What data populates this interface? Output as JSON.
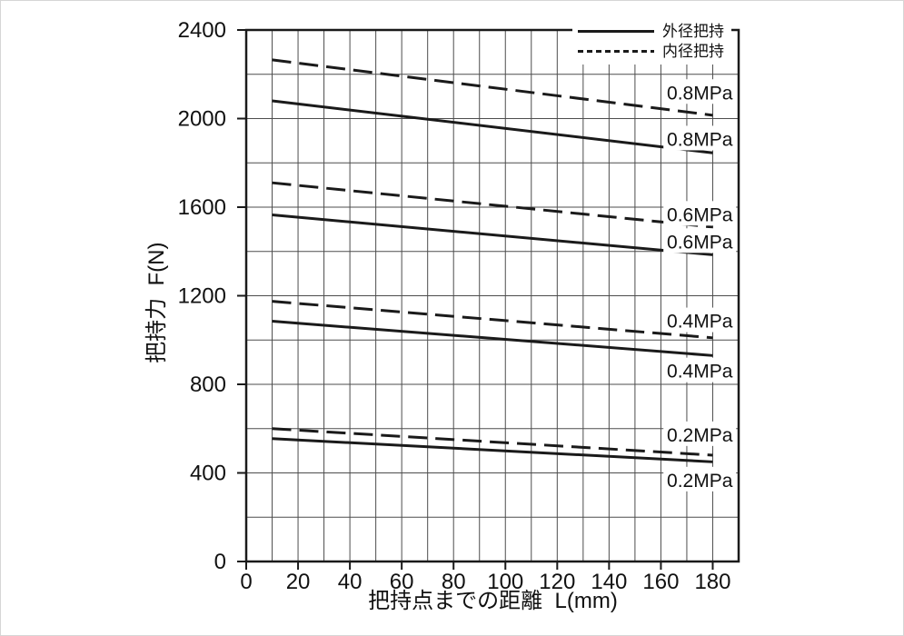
{
  "chart_data": {
    "type": "line",
    "title": "",
    "xlabel": "把持点までの距離  L(mm)",
    "ylabel": "把持力  F(N)",
    "xlim": [
      0,
      190
    ],
    "ylim": [
      0,
      2400
    ],
    "grid": true,
    "x_axis": {
      "tick_values": [
        0,
        20,
        40,
        60,
        80,
        100,
        120,
        140,
        160,
        180
      ],
      "grid_step": 10,
      "unit": "mm"
    },
    "y_axis": {
      "tick_values": [
        0,
        400,
        800,
        1200,
        1600,
        2000,
        2400
      ],
      "grid_step": 200,
      "unit": "N"
    },
    "legend": {
      "position": "top-right",
      "items": [
        {
          "label": "外径把持",
          "style": "solid"
        },
        {
          "label": "内径把持",
          "style": "dashed"
        }
      ]
    },
    "series": [
      {
        "id": "int-08",
        "name": "内径把持 0.8MPa",
        "style": "dashed",
        "x": [
          10,
          180
        ],
        "values": [
          2265,
          2015
        ]
      },
      {
        "id": "ext-08",
        "name": "外径把持 0.8MPa",
        "style": "solid",
        "x": [
          10,
          180
        ],
        "values": [
          2080,
          1845
        ]
      },
      {
        "id": "int-06",
        "name": "内径把持 0.6MPa",
        "style": "dashed",
        "x": [
          10,
          180
        ],
        "values": [
          1710,
          1510
        ]
      },
      {
        "id": "ext-06",
        "name": "外径把持 0.6MPa",
        "style": "solid",
        "x": [
          10,
          180
        ],
        "values": [
          1565,
          1385
        ]
      },
      {
        "id": "int-04",
        "name": "内径把持 0.4MPa",
        "style": "dashed",
        "x": [
          10,
          180
        ],
        "values": [
          1175,
          1010
        ]
      },
      {
        "id": "ext-04",
        "name": "外径把持 0.4MPa",
        "style": "solid",
        "x": [
          10,
          180
        ],
        "values": [
          1085,
          930
        ]
      },
      {
        "id": "int-02",
        "name": "内径把持 0.2MPa",
        "style": "dashed",
        "x": [
          10,
          180
        ],
        "values": [
          600,
          480
        ]
      },
      {
        "id": "ext-02",
        "name": "外径把持 0.2MPa",
        "style": "solid",
        "x": [
          10,
          180
        ],
        "values": [
          555,
          450
        ]
      }
    ],
    "annotations": [
      {
        "text": "0.8MPa",
        "series": "int-08",
        "x": 175,
        "y": 2120
      },
      {
        "text": "0.8MPa",
        "series": "ext-08",
        "x": 175,
        "y": 1910
      },
      {
        "text": "0.6MPa",
        "series": "int-06",
        "x": 175,
        "y": 1570
      },
      {
        "text": "0.6MPa",
        "series": "ext-06",
        "x": 175,
        "y": 1447
      },
      {
        "text": "0.4MPa",
        "series": "int-04",
        "x": 175,
        "y": 1089
      },
      {
        "text": "0.4MPa",
        "series": "ext-04",
        "x": 175,
        "y": 863
      },
      {
        "text": "0.2MPa",
        "series": "int-02",
        "x": 175,
        "y": 575
      },
      {
        "text": "0.2MPa",
        "series": "ext-02",
        "x": 175,
        "y": 370
      }
    ],
    "colors": {
      "ink": "#1a1a1a",
      "grid": "#4d4d4d",
      "background": "#ffffff"
    }
  }
}
